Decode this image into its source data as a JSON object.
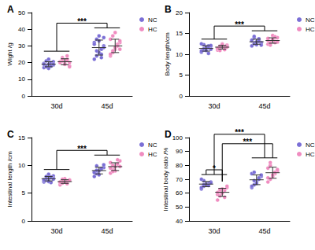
{
  "chart_data": [
    {
      "type": "scatter",
      "title": "A",
      "y_label": "Wight /g",
      "categories": [
        "30d",
        "45d"
      ],
      "ylim": [
        0,
        50
      ],
      "yticks": [
        0,
        10,
        20,
        30,
        40,
        50
      ],
      "grid": false,
      "legend": "upper right",
      "series": [
        {
          "name": "NC",
          "color": "#7b6fd6",
          "values": [
            [
              17,
              18,
              19,
              20,
              18.5,
              19.5,
              21,
              16.5,
              18,
              20.5,
              19,
              17.5,
              22,
              18,
              19
            ],
            [
              22,
              24,
              26,
              28,
              30,
              32,
              34,
              36,
              25,
              29,
              31,
              27,
              33,
              23,
              35
            ]
          ],
          "mean": [
            19,
            29
          ],
          "sd": [
            1.5,
            4.5
          ]
        },
        {
          "name": "HC",
          "color": "#f08cc0",
          "values": [
            [
              20,
              21,
              19,
              22,
              18,
              20.5,
              23,
              19.5,
              21.5,
              17.5,
              20,
              22,
              19,
              24,
              20
            ],
            [
              24,
              26,
              28,
              30,
              32,
              34,
              27,
              29,
              31,
              33,
              25,
              36,
              38,
              30,
              28
            ]
          ],
          "mean": [
            20.5,
            30
          ],
          "sd": [
            1.8,
            4
          ]
        }
      ],
      "annotations": [
        {
          "text": "***",
          "left": [
            [
              "30d",
              "NC"
            ],
            [
              "30d",
              "HC"
            ]
          ],
          "right": [
            [
              "45d",
              "NC"
            ],
            [
              "45d",
              "HC"
            ]
          ]
        }
      ]
    },
    {
      "type": "scatter",
      "title": "B",
      "y_label": "Body length/cm",
      "categories": [
        "30d",
        "45d"
      ],
      "ylim": [
        0,
        20
      ],
      "yticks": [
        0,
        5,
        10,
        15,
        20
      ],
      "grid": false,
      "legend": "upper right",
      "series": [
        {
          "name": "NC",
          "color": "#7b6fd6",
          "values": [
            [
              10.5,
              11,
              11.5,
              12,
              11.2,
              10.8,
              12.3,
              11.7,
              10.2,
              11.9,
              12.5,
              11.3,
              10.9,
              11.6,
              12.1
            ],
            [
              12,
              12.5,
              13,
              13.5,
              12.8,
              13.2,
              14,
              12.3,
              13.7,
              12.6,
              13.4,
              14.3,
              12.9,
              13.1,
              12.2
            ]
          ],
          "mean": [
            11.4,
            13
          ],
          "sd": [
            0.65,
            0.6
          ]
        },
        {
          "name": "HC",
          "color": "#f08cc0",
          "values": [
            [
              11,
              11.5,
              12,
              11.8,
              12.2,
              11.3,
              10.9,
              12.5,
              11.6,
              12,
              11.4,
              11.9,
              12.3,
              11.1,
              11.7
            ],
            [
              12.4,
              13,
              13.6,
              12.8,
              14,
              13.3,
              12.6,
              14.5,
              13.1,
              12.9,
              13.8,
              12.2,
              13.5,
              14.2,
              13
            ]
          ],
          "mean": [
            11.7,
            13.3
          ],
          "sd": [
            0.45,
            0.65
          ]
        }
      ],
      "annotations": [
        {
          "text": "***",
          "left": [
            [
              "30d",
              "NC"
            ],
            [
              "30d",
              "HC"
            ]
          ],
          "right": [
            [
              "45d",
              "NC"
            ],
            [
              "45d",
              "HC"
            ]
          ]
        }
      ]
    },
    {
      "type": "scatter",
      "title": "C",
      "y_label": "Intestinal length /cm",
      "categories": [
        "30d",
        "45d"
      ],
      "ylim": [
        0,
        15
      ],
      "yticks": [
        0,
        5,
        10,
        15
      ],
      "grid": false,
      "legend": "upper right",
      "series": [
        {
          "name": "NC",
          "color": "#7b6fd6",
          "values": [
            [
              7,
              7.3,
              7.5,
              7.8,
              8.1,
              7.2,
              7.6,
              8.4,
              6.9,
              7.7,
              7.4,
              8,
              7.1,
              7.9,
              7.5
            ],
            [
              8,
              8.5,
              9,
              9.3,
              9.6,
              8.8,
              9.9,
              8.3,
              9.4,
              10.1,
              8.7,
              9.1
            ]
          ],
          "mean": [
            7.6,
            9.06
          ],
          "sd": [
            0.4,
            0.6
          ]
        },
        {
          "name": "HC",
          "color": "#f08cc0",
          "values": [
            [
              6.5,
              6.8,
              7,
              7.2,
              7.4,
              6.9,
              7.1,
              7.6,
              6.7,
              7.3,
              7,
              7.5
            ],
            [
              8.6,
              9.2,
              9.7,
              10.2,
              10.8,
              9.5,
              10,
              9,
              11,
              9.8,
              10.5,
              8.9
            ]
          ],
          "mean": [
            7.08,
            9.77
          ],
          "sd": [
            0.33,
            0.7
          ]
        }
      ],
      "annotations": [
        {
          "text": "***",
          "left": [
            [
              "30d",
              "NC"
            ],
            [
              "30d",
              "HC"
            ]
          ],
          "right": [
            [
              "45d",
              "NC"
            ],
            [
              "45d",
              "HC"
            ]
          ]
        }
      ]
    },
    {
      "type": "scatter",
      "title": "D",
      "y_label": "Intestinal body ratio /%",
      "categories": [
        "30d",
        "45d"
      ],
      "ylim": [
        40,
        100
      ],
      "yticks": [
        40,
        50,
        60,
        70,
        80,
        90,
        100
      ],
      "grid": false,
      "legend": "upper right",
      "series": [
        {
          "name": "NC",
          "color": "#7b6fd6",
          "values": [
            [
              63,
              65,
              66,
              67,
              68,
              64,
              69,
              66.5,
              65.5,
              67.5,
              70,
              66
            ],
            [
              64,
              66,
              68,
              70,
              72,
              74,
              69,
              67,
              71,
              73,
              65,
              75
            ]
          ],
          "mean": [
            66.5,
            69.6
          ],
          "sd": [
            1.9,
            3.5
          ]
        },
        {
          "name": "HC",
          "color": "#f08cc0",
          "values": [
            [
              55,
              58,
              60,
              62,
              64,
              59,
              61,
              63,
              57,
              65,
              60.5,
              62.5
            ],
            [
              68,
              70,
              72,
              74,
              76,
              78,
              80,
              73,
              75,
              77,
              71,
              82
            ]
          ],
          "mean": [
            60.6,
            74.7
          ],
          "sd": [
            2.9,
            4
          ]
        }
      ],
      "annotations": [
        {
          "text": "*",
          "left": [
            [
              "30d",
              "NC"
            ]
          ],
          "right": [
            [
              "30d",
              "HC"
            ]
          ]
        },
        {
          "text": "***",
          "left": [
            [
              "30d",
              "HC"
            ]
          ],
          "right": [
            [
              "45d",
              "HC"
            ]
          ]
        },
        {
          "text": "***",
          "left": [
            [
              "30d",
              "NC"
            ],
            [
              "30d",
              "HC"
            ]
          ],
          "right": [
            [
              "45d",
              "NC"
            ],
            [
              "45d",
              "HC"
            ]
          ]
        }
      ]
    }
  ]
}
